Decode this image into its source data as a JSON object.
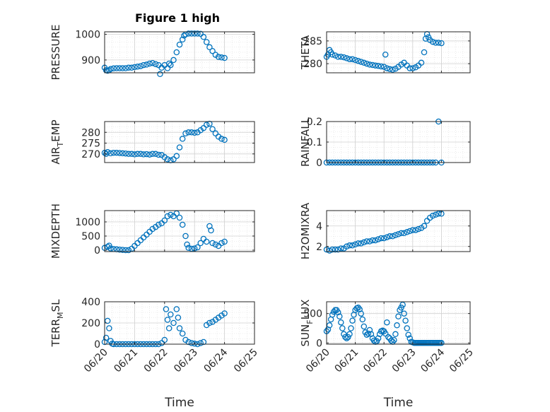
{
  "figure_title": "Figure 1 high",
  "colors": {
    "marker": "#0072BD",
    "axis": "#262626",
    "grid": "#dcdcdc"
  },
  "chart_data": [
    {
      "type": "scatter",
      "id": "pressure",
      "title": "Figure 1 high",
      "ylabel": "PRESSURE",
      "ylabel_parts": [
        [
          "PRESSURE",
          ""
        ]
      ],
      "xlim": [
        0,
        5
      ],
      "ylim": [
        850,
        1010
      ],
      "yticks": [
        900,
        1000
      ],
      "xticks": [
        0,
        1,
        2,
        3,
        4,
        5
      ],
      "xtick_labels": [],
      "grid": true,
      "x": [
        0.0,
        0.05,
        0.1,
        0.15,
        0.2,
        0.3,
        0.4,
        0.5,
        0.6,
        0.7,
        0.8,
        0.9,
        1.0,
        1.1,
        1.2,
        1.3,
        1.4,
        1.5,
        1.6,
        1.7,
        1.8,
        1.85,
        1.9,
        2.0,
        2.1,
        2.15,
        2.2,
        2.3,
        2.4,
        2.5,
        2.6,
        2.65,
        2.7,
        2.8,
        2.9,
        3.0,
        3.1,
        3.2,
        3.3,
        3.4,
        3.5,
        3.6,
        3.7,
        3.8,
        3.9,
        4.0
      ],
      "y": [
        870,
        860,
        858,
        860,
        865,
        867,
        868,
        868,
        868,
        868,
        870,
        870,
        872,
        874,
        876,
        880,
        882,
        886,
        888,
        884,
        880,
        845,
        870,
        880,
        868,
        886,
        880,
        900,
        930,
        960,
        980,
        995,
        1000,
        1003,
        1003,
        1003,
        1003,
        1002,
        990,
        970,
        950,
        935,
        920,
        912,
        910,
        908
      ]
    },
    {
      "type": "scatter",
      "id": "theta",
      "ylabel": "THETA",
      "ylabel_parts": [
        [
          "THETA",
          ""
        ]
      ],
      "xlim": [
        0,
        5
      ],
      "ylim": [
        278,
        287
      ],
      "yticks": [
        280,
        285
      ],
      "xticks": [
        0,
        1,
        2,
        3,
        4,
        5
      ],
      "xtick_labels": [],
      "grid": true,
      "x": [
        0.0,
        0.05,
        0.1,
        0.15,
        0.2,
        0.3,
        0.4,
        0.5,
        0.6,
        0.7,
        0.8,
        0.9,
        1.0,
        1.1,
        1.2,
        1.3,
        1.4,
        1.5,
        1.6,
        1.7,
        1.8,
        1.9,
        2.0,
        2.05,
        2.1,
        2.2,
        2.3,
        2.4,
        2.5,
        2.6,
        2.7,
        2.8,
        2.9,
        3.0,
        3.1,
        3.2,
        3.3,
        3.4,
        3.45,
        3.5,
        3.55,
        3.6,
        3.7,
        3.8,
        3.9,
        4.0
      ],
      "y": [
        281.5,
        282.0,
        283.0,
        282.5,
        282.0,
        281.8,
        281.5,
        281.5,
        281.4,
        281.2,
        281.0,
        281.0,
        280.8,
        280.6,
        280.4,
        280.2,
        280.0,
        279.8,
        279.7,
        279.6,
        279.5,
        279.4,
        279.3,
        282.0,
        279.0,
        278.8,
        278.7,
        278.9,
        279.3,
        279.8,
        280.2,
        279.6,
        279.0,
        279.0,
        279.2,
        279.6,
        280.2,
        282.5,
        285.5,
        286.5,
        285.8,
        285.2,
        284.8,
        284.6,
        284.6,
        284.5
      ]
    },
    {
      "type": "scatter",
      "id": "air_temp",
      "ylabel": "AIR_TEMP",
      "ylabel_parts": [
        [
          "AIR",
          ""
        ],
        [
          "T",
          "sub"
        ],
        [
          "EMP",
          ""
        ]
      ],
      "xlim": [
        0,
        5
      ],
      "ylim": [
        266,
        285
      ],
      "yticks": [
        270,
        275,
        280
      ],
      "xticks": [
        0,
        1,
        2,
        3,
        4,
        5
      ],
      "xtick_labels": [],
      "grid": true,
      "x": [
        0.0,
        0.05,
        0.1,
        0.2,
        0.3,
        0.4,
        0.5,
        0.6,
        0.7,
        0.8,
        0.9,
        1.0,
        1.1,
        1.2,
        1.3,
        1.4,
        1.5,
        1.6,
        1.7,
        1.8,
        1.9,
        2.0,
        2.1,
        2.2,
        2.3,
        2.4,
        2.5,
        2.6,
        2.7,
        2.8,
        2.9,
        3.0,
        3.1,
        3.2,
        3.3,
        3.4,
        3.5,
        3.6,
        3.7,
        3.8,
        3.9,
        4.0
      ],
      "y": [
        270.5,
        270.0,
        270.8,
        270.3,
        270.5,
        270.5,
        270.4,
        270.3,
        270.2,
        270.0,
        270.0,
        269.8,
        270.0,
        270.0,
        269.8,
        269.9,
        269.7,
        270.0,
        270.0,
        269.6,
        269.5,
        268.5,
        267.5,
        267.0,
        267.5,
        269.0,
        273.0,
        277.0,
        279.5,
        280.0,
        280.0,
        279.8,
        280.0,
        281.0,
        282.0,
        283.5,
        284.0,
        281.5,
        279.5,
        278.0,
        277.0,
        276.5
      ]
    },
    {
      "type": "scatter",
      "id": "rainfall",
      "ylabel": "RAINFALL",
      "ylabel_parts": [
        [
          "RAINFALL",
          ""
        ]
      ],
      "xlim": [
        0,
        5
      ],
      "ylim": [
        0,
        0.2
      ],
      "yticks": [
        0,
        0.1,
        0.2
      ],
      "xticks": [
        0,
        1,
        2,
        3,
        4,
        5
      ],
      "xtick_labels": [],
      "grid": true,
      "x": [
        0.0,
        0.1,
        0.2,
        0.3,
        0.4,
        0.5,
        0.6,
        0.7,
        0.8,
        0.9,
        1.0,
        1.1,
        1.2,
        1.3,
        1.4,
        1.5,
        1.6,
        1.7,
        1.8,
        1.9,
        2.0,
        2.1,
        2.2,
        2.3,
        2.4,
        2.5,
        2.6,
        2.7,
        2.8,
        2.9,
        3.0,
        3.1,
        3.2,
        3.3,
        3.4,
        3.5,
        3.6,
        3.7,
        3.8,
        3.9,
        4.0
      ],
      "y": [
        0,
        0,
        0,
        0,
        0,
        0,
        0,
        0,
        0,
        0,
        0,
        0,
        0,
        0,
        0,
        0,
        0,
        0,
        0,
        0,
        0,
        0,
        0,
        0,
        0,
        0,
        0,
        0,
        0,
        0,
        0,
        0,
        0,
        0,
        0,
        0,
        0,
        0,
        0,
        0.2,
        0
      ]
    },
    {
      "type": "scatter",
      "id": "mixdepth",
      "ylabel": "MIXDEPTH",
      "ylabel_parts": [
        [
          "MIXDEPTH",
          ""
        ]
      ],
      "xlim": [
        0,
        5
      ],
      "ylim": [
        -50,
        1400
      ],
      "yticks": [
        0,
        500,
        1000
      ],
      "xticks": [
        0,
        1,
        2,
        3,
        4,
        5
      ],
      "xtick_labels": [],
      "grid": true,
      "x": [
        0.0,
        0.1,
        0.15,
        0.2,
        0.3,
        0.4,
        0.5,
        0.6,
        0.7,
        0.8,
        0.9,
        1.0,
        1.1,
        1.2,
        1.3,
        1.4,
        1.5,
        1.6,
        1.7,
        1.8,
        1.9,
        2.0,
        2.1,
        2.2,
        2.3,
        2.4,
        2.5,
        2.6,
        2.7,
        2.75,
        2.8,
        2.9,
        3.0,
        3.1,
        3.2,
        3.3,
        3.4,
        3.5,
        3.55,
        3.6,
        3.7,
        3.8,
        3.9,
        4.0
      ],
      "y": [
        80,
        120,
        160,
        60,
        40,
        30,
        20,
        10,
        0,
        0,
        50,
        150,
        250,
        350,
        450,
        550,
        650,
        750,
        820,
        900,
        950,
        1050,
        1200,
        1250,
        1200,
        1300,
        1150,
        900,
        500,
        200,
        80,
        50,
        60,
        100,
        250,
        400,
        300,
        850,
        700,
        250,
        200,
        150,
        250,
        300
      ]
    },
    {
      "type": "scatter",
      "id": "h2omixra",
      "ylabel": "H2OMIXRA",
      "ylabel_parts": [
        [
          "H2OMIXRA",
          ""
        ]
      ],
      "xlim": [
        0,
        5
      ],
      "ylim": [
        1.5,
        5.5
      ],
      "yticks": [
        2,
        4
      ],
      "xticks": [
        0,
        1,
        2,
        3,
        4,
        5
      ],
      "xtick_labels": [],
      "grid": true,
      "x": [
        0.0,
        0.1,
        0.2,
        0.3,
        0.4,
        0.5,
        0.6,
        0.7,
        0.8,
        0.9,
        1.0,
        1.1,
        1.2,
        1.3,
        1.4,
        1.5,
        1.6,
        1.7,
        1.8,
        1.9,
        2.0,
        2.1,
        2.2,
        2.3,
        2.4,
        2.5,
        2.6,
        2.7,
        2.8,
        2.9,
        3.0,
        3.1,
        3.2,
        3.3,
        3.4,
        3.5,
        3.6,
        3.7,
        3.8,
        3.9,
        4.0
      ],
      "y": [
        1.7,
        1.6,
        1.7,
        1.7,
        1.7,
        1.8,
        1.8,
        2.0,
        2.1,
        2.1,
        2.2,
        2.3,
        2.3,
        2.4,
        2.5,
        2.5,
        2.6,
        2.6,
        2.7,
        2.8,
        2.8,
        2.9,
        3.0,
        3.0,
        3.1,
        3.2,
        3.3,
        3.3,
        3.4,
        3.5,
        3.6,
        3.6,
        3.7,
        3.8,
        4.0,
        4.5,
        4.8,
        5.0,
        5.1,
        5.2,
        5.2
      ]
    },
    {
      "type": "scatter",
      "id": "terr_msl",
      "ylabel": "TERR_MSL",
      "ylabel_parts": [
        [
          "TERR",
          ""
        ],
        [
          "M",
          "sub"
        ],
        [
          "SL",
          ""
        ]
      ],
      "xlim": [
        0,
        5
      ],
      "ylim": [
        0,
        400
      ],
      "yticks": [
        0,
        200,
        400
      ],
      "xticks": [
        0,
        1,
        2,
        3,
        4,
        5
      ],
      "xtick_labels": [
        "06/20",
        "06/21",
        "06/22",
        "06/23",
        "06/24",
        "06/25"
      ],
      "xlabel": "Time",
      "grid": true,
      "x": [
        0.0,
        0.05,
        0.1,
        0.15,
        0.2,
        0.25,
        0.3,
        0.4,
        0.5,
        0.6,
        0.7,
        0.8,
        0.9,
        1.0,
        1.1,
        1.2,
        1.3,
        1.4,
        1.5,
        1.6,
        1.7,
        1.8,
        1.9,
        2.0,
        2.05,
        2.1,
        2.15,
        2.2,
        2.3,
        2.4,
        2.45,
        2.5,
        2.6,
        2.7,
        2.8,
        2.9,
        3.0,
        3.1,
        3.2,
        3.3,
        3.4,
        3.5,
        3.6,
        3.7,
        3.8,
        3.9,
        4.0
      ],
      "y": [
        20,
        60,
        220,
        150,
        30,
        5,
        0,
        0,
        0,
        0,
        0,
        0,
        0,
        0,
        0,
        0,
        0,
        0,
        0,
        0,
        0,
        0,
        10,
        40,
        330,
        230,
        150,
        280,
        200,
        330,
        250,
        150,
        100,
        40,
        20,
        10,
        5,
        0,
        10,
        20,
        180,
        200,
        210,
        230,
        250,
        270,
        290
      ]
    },
    {
      "type": "scatter",
      "id": "sun_flux",
      "ylabel": "SUN_FLUX",
      "ylabel_parts": [
        [
          "SUN",
          ""
        ],
        [
          "F",
          "sub"
        ],
        [
          "LUX",
          ""
        ]
      ],
      "xlim": [
        0,
        5
      ],
      "ylim": [
        -20,
        700
      ],
      "yticks": [
        0,
        500
      ],
      "xticks": [
        0,
        1,
        2,
        3,
        4,
        5
      ],
      "xtick_labels": [
        "06/20",
        "06/21",
        "06/22",
        "06/23",
        "06/24",
        "06/25"
      ],
      "xlabel": "Time",
      "grid": true,
      "x": [
        0.0,
        0.05,
        0.1,
        0.15,
        0.2,
        0.25,
        0.3,
        0.35,
        0.4,
        0.45,
        0.5,
        0.55,
        0.6,
        0.65,
        0.7,
        0.75,
        0.8,
        0.85,
        0.9,
        0.95,
        1.0,
        1.05,
        1.1,
        1.15,
        1.2,
        1.25,
        1.3,
        1.35,
        1.4,
        1.45,
        1.5,
        1.55,
        1.6,
        1.65,
        1.7,
        1.75,
        1.8,
        1.85,
        1.9,
        1.95,
        2.0,
        2.05,
        2.1,
        2.15,
        2.2,
        2.25,
        2.3,
        2.35,
        2.4,
        2.45,
        2.5,
        2.55,
        2.6,
        2.65,
        2.7,
        2.75,
        2.8,
        2.85,
        2.9,
        2.95,
        3.0,
        3.05,
        3.1,
        3.15,
        3.2,
        3.25,
        3.3,
        3.35,
        3.4,
        3.45,
        3.5,
        3.55,
        3.6,
        3.65,
        3.7,
        3.75,
        3.8,
        3.85,
        3.9,
        3.95,
        4.0
      ],
      "y": [
        200,
        230,
        300,
        400,
        480,
        530,
        560,
        560,
        520,
        450,
        350,
        250,
        150,
        100,
        80,
        100,
        150,
        250,
        380,
        480,
        560,
        590,
        600,
        570,
        500,
        400,
        280,
        180,
        140,
        160,
        220,
        150,
        80,
        40,
        20,
        30,
        80,
        150,
        200,
        210,
        200,
        160,
        350,
        100,
        80,
        40,
        20,
        50,
        150,
        300,
        450,
        560,
        600,
        650,
        500,
        380,
        250,
        140,
        80,
        20,
        10,
        0,
        0,
        0,
        0,
        0,
        0,
        0,
        0,
        0,
        0,
        0,
        0,
        0,
        0,
        0,
        0,
        0,
        0,
        0,
        0
      ]
    }
  ]
}
